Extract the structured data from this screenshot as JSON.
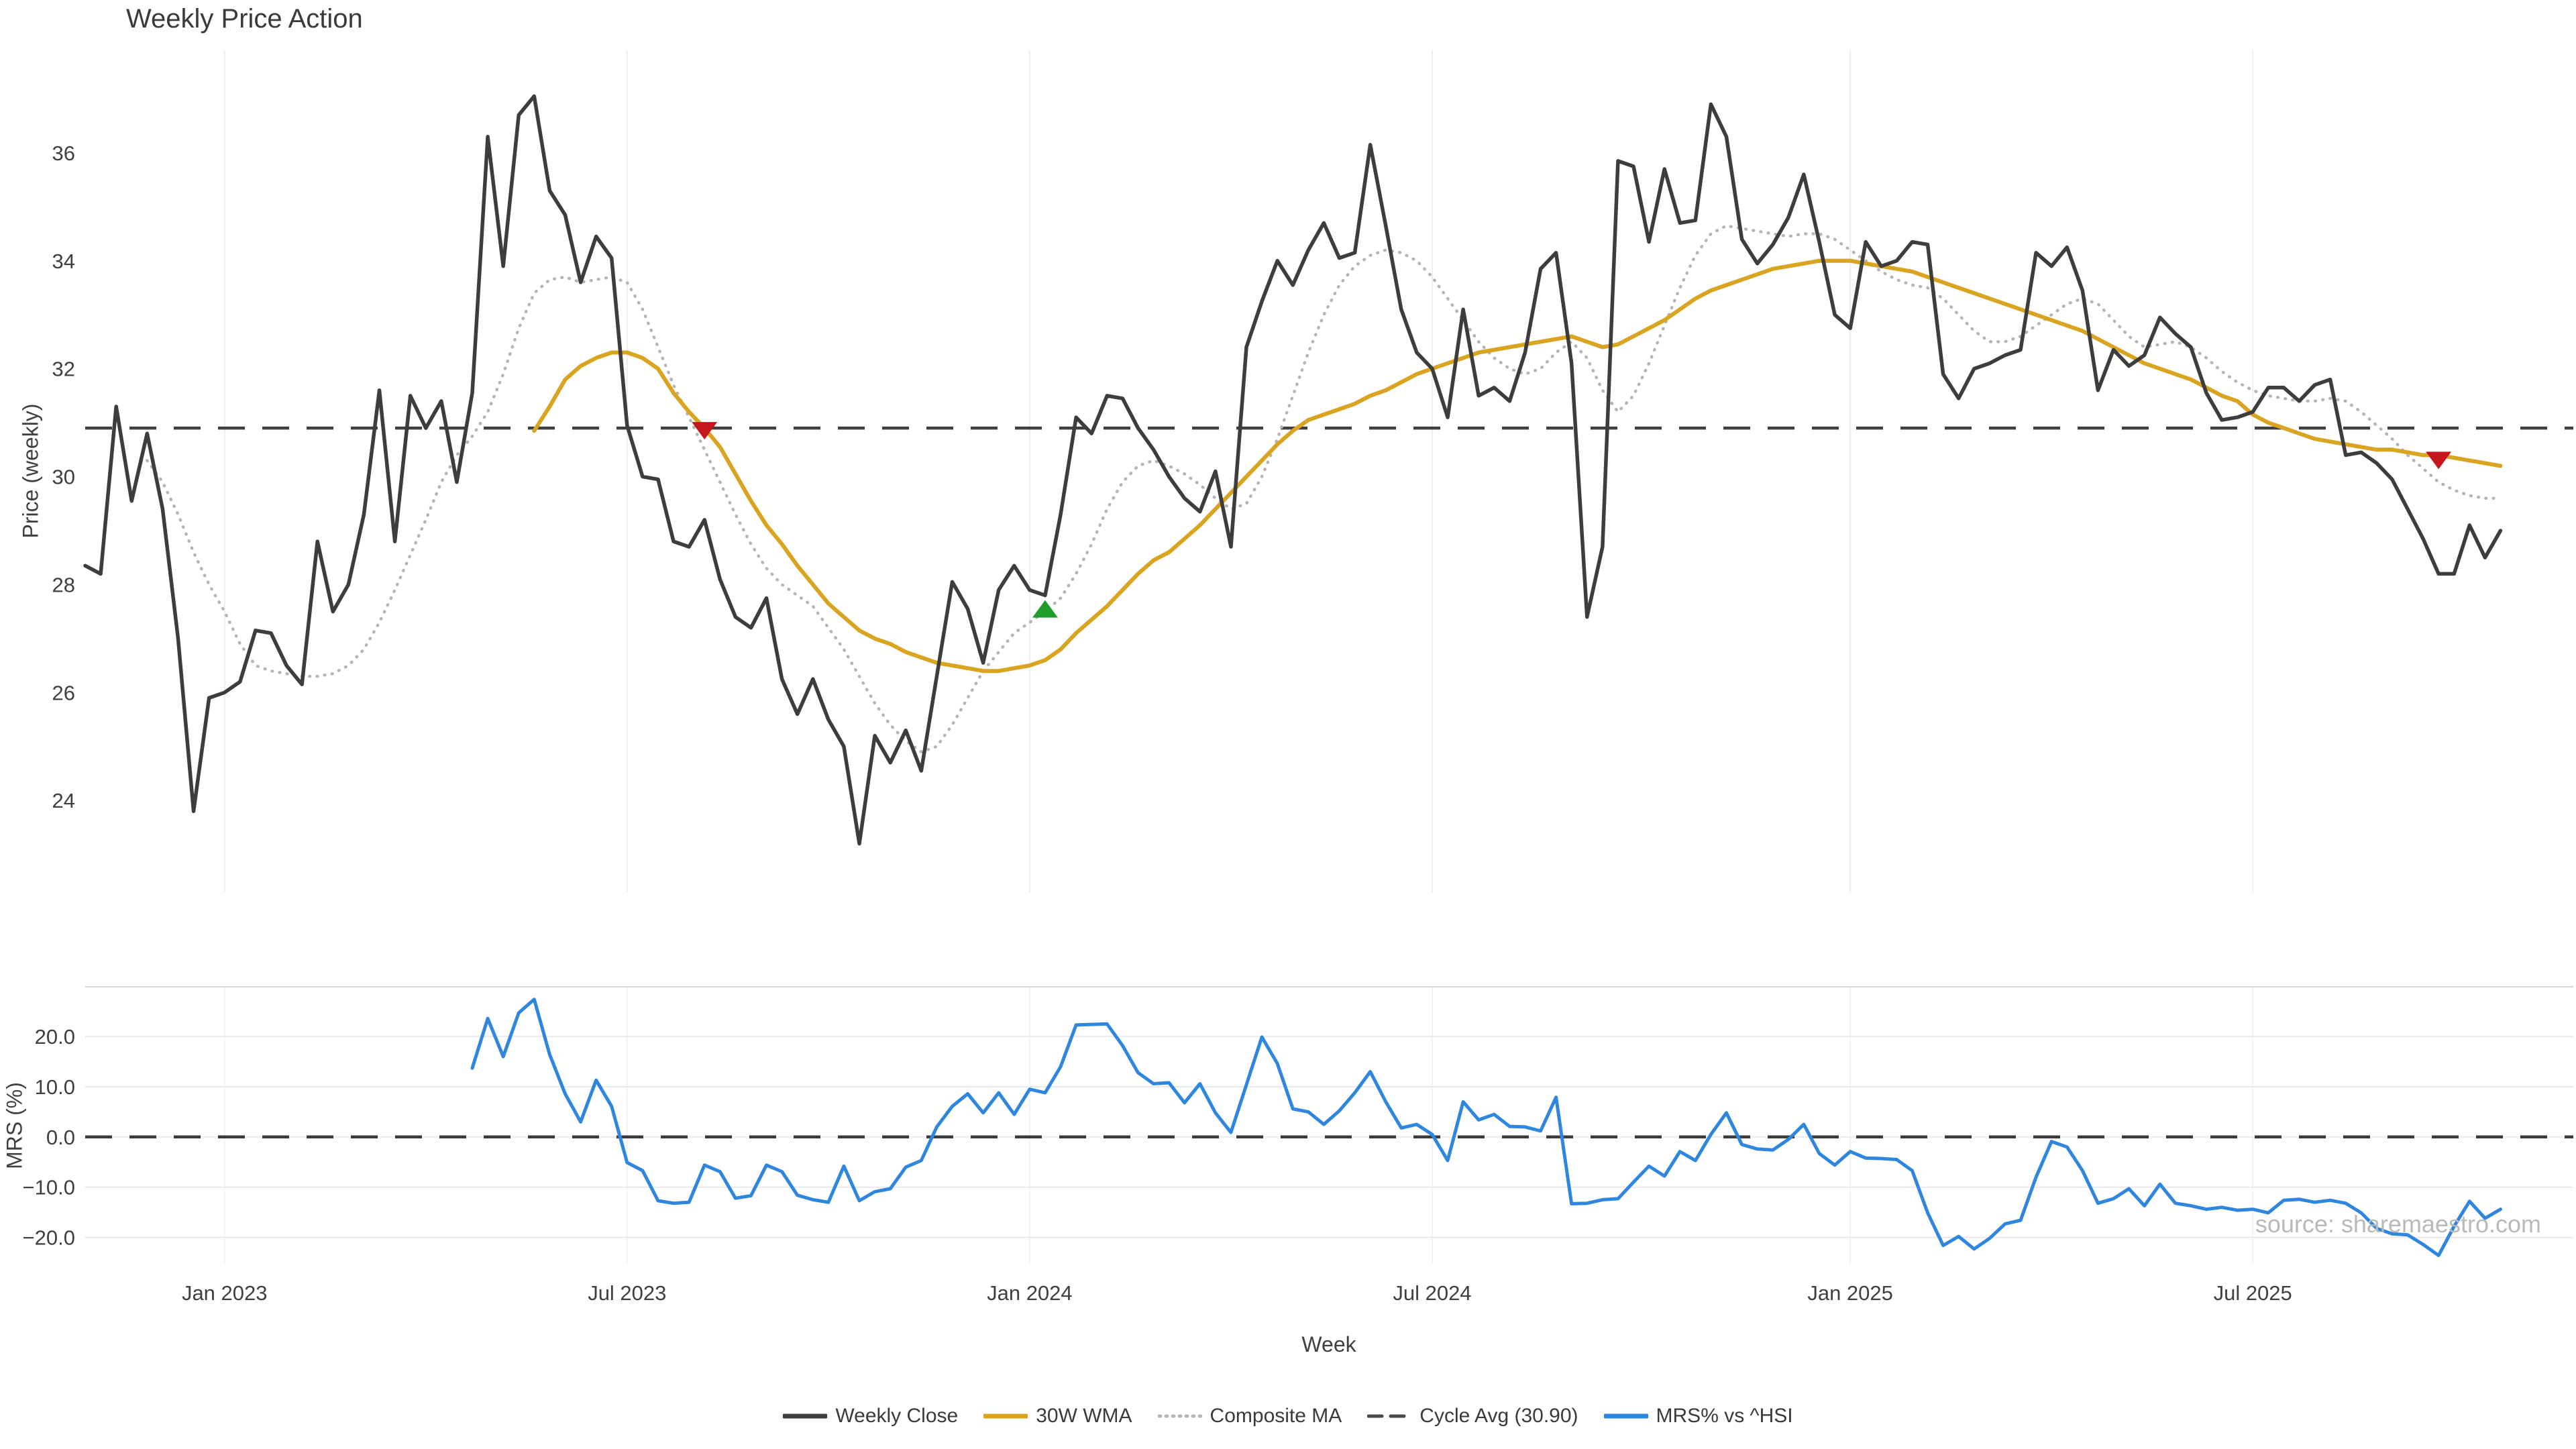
{
  "title": "Weekly Price Action",
  "source": "source: sharemaestro.com",
  "x_axis": {
    "label": "Week",
    "start_date": "2022-10-31",
    "freq": "weekly",
    "ticks": [
      {
        "label": "Jan 2023",
        "index": 9
      },
      {
        "label": "Jul 2023",
        "index": 35
      },
      {
        "label": "Jan 2024",
        "index": 61
      },
      {
        "label": "Jul 2024",
        "index": 87
      },
      {
        "label": "Jan 2025",
        "index": 114
      },
      {
        "label": "Jul 2025",
        "index": 140
      }
    ]
  },
  "legend": [
    {
      "label": "Weekly Close",
      "color": "#3d3d3d",
      "style": "solid"
    },
    {
      "label": "30W WMA",
      "color": "#d9a41f",
      "style": "solid"
    },
    {
      "label": "Composite MA",
      "color": "#b5b5b5",
      "style": "dotted"
    },
    {
      "label": "Cycle Avg (30.90)",
      "color": "#4a4a4a",
      "style": "dashed"
    },
    {
      "label": "MRS% vs ^HSI",
      "color": "#2e86de",
      "style": "solid"
    }
  ],
  "chart_data": [
    {
      "type": "line",
      "panel": "price",
      "ylabel": "Price (weekly)",
      "ylim": [
        22.3,
        37.9
      ],
      "yticks": [
        {
          "label": "24",
          "value": 24
        },
        {
          "label": "26",
          "value": 26
        },
        {
          "label": "28",
          "value": 28
        },
        {
          "label": "30",
          "value": 30
        },
        {
          "label": "32",
          "value": 32
        },
        {
          "label": "34",
          "value": 34
        },
        {
          "label": "36",
          "value": 36
        }
      ],
      "cycle_avg": 30.9,
      "grid": "vertical-faint",
      "series": [
        {
          "name": "Composite MA",
          "color": "#b5b5b5",
          "style": "dotted",
          "width": 4.5,
          "start_index": 4,
          "values": [
            30.3,
            29.9,
            29.3,
            28.6,
            28.0,
            27.5,
            26.9,
            26.5,
            26.4,
            26.35,
            26.3,
            26.3,
            26.35,
            26.5,
            26.8,
            27.3,
            27.9,
            28.55,
            29.2,
            29.9,
            30.4,
            30.75,
            31.2,
            31.9,
            32.75,
            33.4,
            33.65,
            33.7,
            33.6,
            33.65,
            33.7,
            33.6,
            33.1,
            32.4,
            31.7,
            31.1,
            30.5,
            29.9,
            29.3,
            28.75,
            28.3,
            28.0,
            27.8,
            27.6,
            27.2,
            26.8,
            26.3,
            25.8,
            25.4,
            25.1,
            24.9,
            25.0,
            25.4,
            25.9,
            26.4,
            26.75,
            27.1,
            27.3,
            27.5,
            27.75,
            28.2,
            28.75,
            29.4,
            29.9,
            30.2,
            30.3,
            30.2,
            30.05,
            29.85,
            29.6,
            29.4,
            29.5,
            30.0,
            30.7,
            31.5,
            32.3,
            33.0,
            33.55,
            33.9,
            34.1,
            34.2,
            34.15,
            34.0,
            33.7,
            33.3,
            32.9,
            32.5,
            32.2,
            32.0,
            31.9,
            32.0,
            32.3,
            32.5,
            32.2,
            31.6,
            31.2,
            31.5,
            32.1,
            32.8,
            33.5,
            34.1,
            34.5,
            34.65,
            34.6,
            34.55,
            34.5,
            34.45,
            34.5,
            34.5,
            34.4,
            34.2,
            34.0,
            33.8,
            33.65,
            33.55,
            33.5,
            33.3,
            33.0,
            32.7,
            32.5,
            32.5,
            32.6,
            32.8,
            33.0,
            33.2,
            33.3,
            33.2,
            32.9,
            32.6,
            32.4,
            32.45,
            32.5,
            32.4,
            32.2,
            31.95,
            31.75,
            31.6,
            31.5,
            31.45,
            31.4,
            31.4,
            31.45,
            31.4,
            31.2,
            30.95,
            30.7,
            30.4,
            30.15,
            29.9,
            29.75,
            29.65,
            29.6,
            29.6
          ]
        },
        {
          "name": "30W WMA",
          "color": "#d9a41f",
          "style": "solid",
          "width": 6,
          "start_index": 29,
          "values": [
            30.85,
            31.3,
            31.8,
            32.05,
            32.2,
            32.3,
            32.3,
            32.2,
            32.0,
            31.55,
            31.2,
            30.9,
            30.55,
            30.05,
            29.55,
            29.1,
            28.75,
            28.35,
            28.0,
            27.65,
            27.4,
            27.15,
            27.0,
            26.9,
            26.75,
            26.65,
            26.55,
            26.5,
            26.45,
            26.4,
            26.4,
            26.45,
            26.5,
            26.6,
            26.8,
            27.1,
            27.35,
            27.6,
            27.9,
            28.2,
            28.45,
            28.6,
            28.85,
            29.1,
            29.4,
            29.7,
            30.0,
            30.3,
            30.6,
            30.85,
            31.05,
            31.15,
            31.25,
            31.35,
            31.5,
            31.6,
            31.75,
            31.9,
            32.0,
            32.1,
            32.2,
            32.3,
            32.35,
            32.4,
            32.45,
            32.5,
            32.55,
            32.6,
            32.5,
            32.4,
            32.45,
            32.6,
            32.75,
            32.9,
            33.1,
            33.3,
            33.45,
            33.55,
            33.65,
            33.75,
            33.85,
            33.9,
            33.95,
            34.0,
            34.0,
            34.0,
            33.95,
            33.9,
            33.85,
            33.8,
            33.7,
            33.6,
            33.5,
            33.4,
            33.3,
            33.2,
            33.1,
            33.0,
            32.9,
            32.8,
            32.7,
            32.55,
            32.4,
            32.25,
            32.1,
            32.0,
            31.9,
            31.8,
            31.65,
            31.5,
            31.4,
            31.15,
            31.0,
            30.9,
            30.8,
            30.7,
            30.65,
            30.6,
            30.55,
            30.5,
            30.5,
            30.45,
            30.4,
            30.4,
            30.35,
            30.3,
            30.25,
            30.2
          ]
        },
        {
          "name": "Weekly Close",
          "color": "#3d3d3d",
          "style": "solid",
          "width": 5.5,
          "start_index": 0,
          "values": [
            28.35,
            28.2,
            31.3,
            29.55,
            30.8,
            29.4,
            27.0,
            23.8,
            25.9,
            26.0,
            26.2,
            27.15,
            27.1,
            26.5,
            26.15,
            28.8,
            27.5,
            28.0,
            29.3,
            31.6,
            28.8,
            31.5,
            30.9,
            31.4,
            29.9,
            31.55,
            36.3,
            33.9,
            36.7,
            37.05,
            35.3,
            34.85,
            33.6,
            34.45,
            34.05,
            30.95,
            30.0,
            29.95,
            28.8,
            28.7,
            29.2,
            28.1,
            27.4,
            27.2,
            27.75,
            26.25,
            25.6,
            26.25,
            25.5,
            25.0,
            23.2,
            25.2,
            24.7,
            25.3,
            24.55,
            26.3,
            28.05,
            27.55,
            26.55,
            27.9,
            28.35,
            27.9,
            27.8,
            29.3,
            31.1,
            30.8,
            31.5,
            31.45,
            30.9,
            30.5,
            30.0,
            29.6,
            29.35,
            30.1,
            28.7,
            32.4,
            33.25,
            34.0,
            33.55,
            34.2,
            34.7,
            34.05,
            34.15,
            36.15,
            34.65,
            33.1,
            32.3,
            32.0,
            31.1,
            33.1,
            31.5,
            31.65,
            31.4,
            32.3,
            33.85,
            34.15,
            32.1,
            27.4,
            28.7,
            35.85,
            35.75,
            34.35,
            35.7,
            34.7,
            34.75,
            36.9,
            36.3,
            34.4,
            33.95,
            34.3,
            34.8,
            35.6,
            34.35,
            33.0,
            32.75,
            34.35,
            33.9,
            34.0,
            34.35,
            34.3,
            31.9,
            31.45,
            32.0,
            32.1,
            32.25,
            32.35,
            34.15,
            33.9,
            34.25,
            33.45,
            31.6,
            32.35,
            32.05,
            32.25,
            32.95,
            32.65,
            32.4,
            31.55,
            31.05,
            31.1,
            31.2,
            31.65,
            31.65,
            31.4,
            31.7,
            31.8,
            30.4,
            30.45,
            30.25,
            29.95,
            29.4,
            28.85,
            28.2,
            28.2,
            29.1,
            28.5,
            29.0
          ]
        }
      ],
      "markers": [
        {
          "type": "sell",
          "shape": "triangle-down",
          "color": "#c4161c",
          "index": 40,
          "value": 30.85
        },
        {
          "type": "buy",
          "shape": "triangle-up",
          "color": "#1f9e2c",
          "index": 62,
          "value": 27.55
        },
        {
          "type": "sell",
          "shape": "triangle-down",
          "color": "#c4161c",
          "index": 152,
          "value": 30.3
        }
      ]
    },
    {
      "type": "line",
      "panel": "mrs",
      "ylabel": "MRS (%)",
      "ylim": [
        -25.4,
        29.9
      ],
      "yticks": [
        {
          "label": "20.0",
          "value": 20
        },
        {
          "label": "10.0",
          "value": 10
        },
        {
          "label": "0.0",
          "value": 0
        },
        {
          "label": "−10.0",
          "value": -10
        },
        {
          "label": "−20.0",
          "value": -20
        }
      ],
      "zero_line_dashed": true,
      "grid": "horizontal",
      "series": [
        {
          "name": "MRS% vs ^HSI",
          "color": "#2e86de",
          "style": "solid",
          "width": 5,
          "start_index": 25,
          "values": [
            13.7,
            23.6,
            16.0,
            24.7,
            27.4,
            16.4,
            8.6,
            3.0,
            11.3,
            6.1,
            -5.1,
            -6.7,
            -12.7,
            -13.2,
            -13.0,
            -5.6,
            -6.9,
            -12.2,
            -11.7,
            -5.6,
            -6.9,
            -11.6,
            -12.5,
            -13.0,
            -5.8,
            -12.7,
            -10.9,
            -10.3,
            -6.0,
            -4.7,
            2.0,
            6.1,
            8.6,
            4.8,
            8.8,
            4.5,
            9.5,
            8.8,
            14.0,
            22.3,
            22.4,
            22.5,
            18.2,
            12.8,
            10.6,
            10.8,
            6.8,
            10.6,
            4.8,
            0.9,
            10.4,
            19.9,
            14.6,
            5.6,
            5.0,
            2.5,
            5.2,
            8.8,
            13.0,
            7.0,
            1.8,
            2.5,
            0.5,
            -4.7,
            7.0,
            3.4,
            4.5,
            2.1,
            2.0,
            1.2,
            7.9,
            -13.3,
            -13.2,
            -12.5,
            -12.3,
            -9.0,
            -5.8,
            -7.8,
            -2.9,
            -4.7,
            0.5,
            4.8,
            -1.5,
            -2.4,
            -2.6,
            -0.5,
            2.5,
            -3.3,
            -5.6,
            -2.9,
            -4.2,
            -4.3,
            -4.5,
            -6.7,
            -15.1,
            -21.6,
            -19.8,
            -22.3,
            -20.2,
            -17.3,
            -16.6,
            -8.0,
            -0.9,
            -2.0,
            -6.7,
            -13.2,
            -12.3,
            -10.3,
            -13.7,
            -9.4,
            -13.2,
            -13.7,
            -14.4,
            -14.0,
            -14.6,
            -14.4,
            -15.1,
            -12.6,
            -12.4,
            -13.0,
            -12.6,
            -13.2,
            -15.1,
            -18.2,
            -19.3,
            -19.5,
            -21.4,
            -23.6,
            -17.8,
            -12.8,
            -16.2,
            -14.4
          ]
        }
      ]
    }
  ]
}
